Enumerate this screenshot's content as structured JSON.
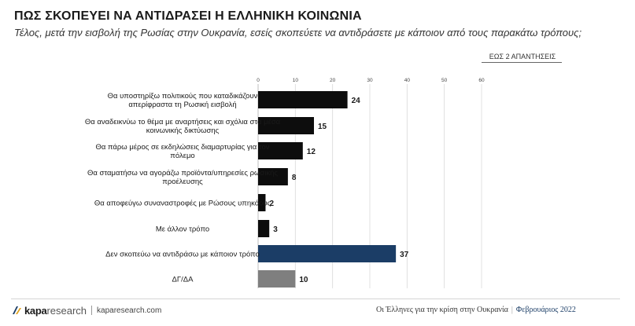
{
  "header": {
    "title": "ΠΩΣ ΣΚΟΠΕΥΕΙ ΝΑ ΑΝΤΙΔΡΑΣΕΙ Η ΕΛΛΗΝΙΚΗ ΚΟΙΝΩΝΙΑ",
    "subtitle": "Τέλος, μετά την εισβολή της Ρωσίας στην Ουκρανία, εσείς σκοπεύετε να αντιδράσετε με κάποιον από τους παρακάτω τρόπους;",
    "answers_note": "ΕΩΣ 2 ΑΠΑΝΤΗΣΕΙΣ"
  },
  "chart_data": {
    "type": "bar",
    "orientation": "horizontal",
    "categories": [
      [
        "Θα υποστηρίξω πολιτικούς που καταδικάζουν",
        "απερίφραστα τη Ρωσική εισβολή"
      ],
      [
        "Θα αναδεικνύω το θέμα με αναρτήσεις και σχόλια στα μέσα",
        "κοινωνικής δικτύωσης"
      ],
      [
        "Θα πάρω μέρος σε εκδηλώσεις διαμαρτυρίας για τον",
        "πόλεμο"
      ],
      [
        "Θα σταματήσω να αγοράζω προϊόντα/υπηρεσίες ρωσικής",
        "προέλευσης"
      ],
      [
        "Θα αποφεύγω συναναστροφές με Ρώσους υπηκόους"
      ],
      [
        "Με άλλον τρόπο"
      ],
      [
        "Δεν σκοπεύω να αντιδράσω με κάποιον τρόπο"
      ],
      [
        "ΔΓ/ΔΑ"
      ]
    ],
    "values": [
      24,
      15,
      12,
      8,
      2,
      3,
      37,
      10
    ],
    "bar_colors": [
      "#0d0d0d",
      "#0d0d0d",
      "#0d0d0d",
      "#0d0d0d",
      "#0d0d0d",
      "#0d0d0d",
      "#1b3d66",
      "#7f7f7f"
    ],
    "xlim": [
      0,
      60
    ],
    "ticks": [
      0,
      10,
      20,
      30,
      40,
      50,
      60
    ],
    "grid": true,
    "title": "",
    "xlabel": "",
    "ylabel": ""
  },
  "footer": {
    "logo_kapa": "kapa",
    "logo_research": "research",
    "url": "kaparesearch.com",
    "caption": "Οι Έλληνες για την κρίση στην Ουκρανία",
    "separator": "|",
    "date": "Φεβρουάριος 2022"
  }
}
